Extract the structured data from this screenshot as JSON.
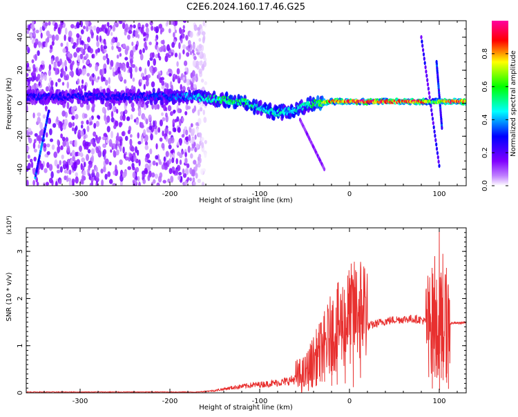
{
  "title": "C2E6.2024.160.17.46.G25",
  "chart_data": [
    {
      "type": "heatmap",
      "xlabel": "Height of straight line (km)",
      "ylabel": "Frequency (Hz)",
      "xlim": [
        -360,
        130
      ],
      "ylim": [
        -50,
        50
      ],
      "xticks": [
        -300,
        -200,
        -100,
        0,
        100
      ],
      "yticks": [
        -40,
        -20,
        0,
        20,
        40
      ],
      "colorbar": {
        "label": "Normalized spectral amplitude",
        "range": [
          0,
          1
        ],
        "ticks": [
          "0.0",
          "0.2",
          "0.4",
          "0.6",
          "0.8"
        ],
        "colormap": [
          "#ffffff",
          "#8000ff",
          "#0000ff",
          "#00ffff",
          "#00ff00",
          "#ffff00",
          "#ff0000",
          "#ff00ff"
        ]
      },
      "ridge": [
        {
          "x": -360,
          "freq": 4,
          "amp": 0.3
        },
        {
          "x": -300,
          "freq": 4,
          "amp": 0.3
        },
        {
          "x": -250,
          "freq": 4,
          "amp": 0.3
        },
        {
          "x": -200,
          "freq": 4,
          "amp": 0.35
        },
        {
          "x": -180,
          "freq": 4,
          "amp": 0.4
        },
        {
          "x": -160,
          "freq": 3,
          "amp": 0.5
        },
        {
          "x": -140,
          "freq": 2,
          "amp": 0.55
        },
        {
          "x": -120,
          "freq": 1,
          "amp": 0.55
        },
        {
          "x": -100,
          "freq": -3,
          "amp": 0.5
        },
        {
          "x": -80,
          "freq": -6,
          "amp": 0.5
        },
        {
          "x": -60,
          "freq": -4,
          "amp": 0.5
        },
        {
          "x": -40,
          "freq": 0,
          "amp": 0.55
        },
        {
          "x": -20,
          "freq": 1,
          "amp": 0.85
        },
        {
          "x": 0,
          "freq": 1,
          "amp": 0.9
        },
        {
          "x": 40,
          "freq": 1,
          "amp": 0.9
        },
        {
          "x": 80,
          "freq": 1,
          "amp": 0.9
        },
        {
          "x": 95,
          "freq": 1,
          "amp": 0.6
        },
        {
          "x": 110,
          "freq": 1,
          "amp": 0.9
        },
        {
          "x": 130,
          "freq": 1,
          "amp": 0.9
        }
      ],
      "streaks": [
        {
          "x": [
            80,
            100
          ],
          "freq": [
            40,
            -38
          ],
          "amp": 0.25
        },
        {
          "x": [
            97,
            103
          ],
          "freq": [
            25,
            -15
          ],
          "amp": 0.35
        },
        {
          "x": [
            -55,
            -28
          ],
          "freq": [
            -10,
            -40
          ],
          "amp": 0.15
        },
        {
          "x": [
            -350,
            -335
          ],
          "freq": [
            -45,
            -5
          ],
          "amp": 0.35
        }
      ],
      "noise_region": {
        "x": [
          -360,
          -160
        ],
        "freq": [
          -50,
          50
        ],
        "amp": 0.15
      }
    },
    {
      "type": "line",
      "xlabel": "Height of straight line (km)",
      "ylabel": "SNR (10 * v/v)",
      "multiplier": "(x10⁴)",
      "xlim": [
        -360,
        130
      ],
      "ylim": [
        0,
        3.5
      ],
      "xticks": [
        -300,
        -200,
        -100,
        0,
        100
      ],
      "yticks": [
        0,
        1,
        2,
        3
      ],
      "series": [
        {
          "color": "#e8302f",
          "envelope": {
            "x": [
              -360,
              -300,
              -200,
              -170,
              -150,
              -130,
              -110,
              -90,
              -70,
              -50,
              -40,
              -30,
              -20,
              -10,
              0,
              10,
              20,
              30,
              40,
              50,
              60,
              70,
              80,
              85,
              90,
              95,
              100,
              105,
              110,
              115,
              120,
              130
            ],
            "y": [
              0.01,
              0.01,
              0.01,
              0.01,
              0.03,
              0.07,
              0.1,
              0.12,
              0.15,
              0.22,
              0.45,
              0.65,
              0.9,
              1.05,
              1.2,
              1.3,
              1.4,
              1.47,
              1.52,
              1.55,
              1.56,
              1.57,
              1.55,
              1.5,
              1.5,
              1.45,
              1.45,
              1.4,
              1.45,
              1.48,
              1.48,
              1.49
            ]
          },
          "spikes": [
            {
              "x": -42,
              "y": 0.75
            },
            {
              "x": -33,
              "y": 1.0
            },
            {
              "x": -28,
              "y": 0.85
            },
            {
              "x": -20,
              "y": 1.75
            },
            {
              "x": -14,
              "y": 1.2
            },
            {
              "x": -5,
              "y": 1.0
            },
            {
              "x": 4,
              "y": 1.25
            },
            {
              "x": 12,
              "y": 0.9
            },
            {
              "x": 88,
              "y": 2.1
            },
            {
              "x": 92,
              "y": 2.65
            },
            {
              "x": 95,
              "y": 2.9
            },
            {
              "x": 97,
              "y": 2.4
            },
            {
              "x": 100,
              "y": 3.45
            },
            {
              "x": 102,
              "y": 2.55
            },
            {
              "x": 104,
              "y": 2.95
            },
            {
              "x": 108,
              "y": 2.65
            },
            {
              "x": 110,
              "y": 2.3
            }
          ]
        }
      ]
    }
  ]
}
